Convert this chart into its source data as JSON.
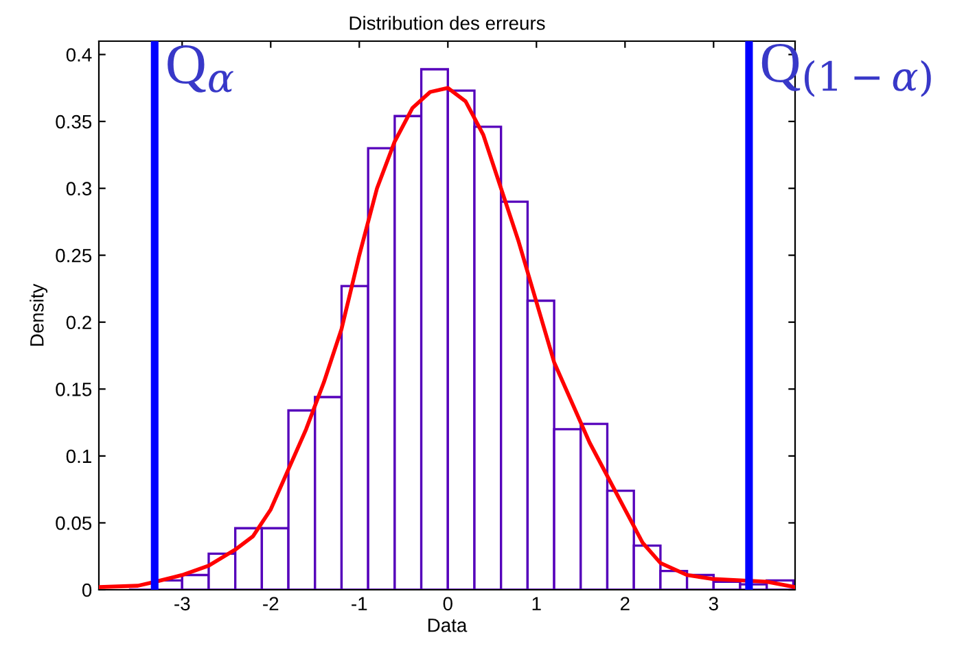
{
  "chart_data": {
    "type": "histogram",
    "title": "Distribution des erreurs",
    "xlabel": "Data",
    "ylabel": "Density",
    "series": [
      {
        "color": "#5500bb",
        "bins": [
          -3.9,
          -3.6,
          -3.3,
          -3.0,
          -2.7,
          -2.4,
          -2.1,
          -1.8,
          -1.5,
          -1.2,
          -0.9,
          -0.6,
          -0.3,
          0,
          0.3,
          0.6,
          0.9,
          1.2,
          1.5,
          1.8,
          2.1,
          2.4,
          2.7,
          3.0,
          3.3,
          3.6,
          3.9
        ],
        "values": [
          null,
          0,
          0.007,
          0.011,
          0.027,
          0.046,
          0.046,
          0.134,
          0.144,
          0.227,
          0.33,
          0.354,
          0.389,
          0.373,
          0.346,
          0.29,
          0.216,
          0.12,
          0.124,
          0.074,
          0.033,
          0.014,
          0.011,
          0.006,
          0.004,
          0.007
        ]
      },
      {
        "type": "line",
        "color": "#ff0000",
        "x": [
          -3.94,
          -3.5,
          -3.3,
          -3.0,
          -2.7,
          -2.4,
          -2.2,
          -2.0,
          -1.8,
          -1.6,
          -1.4,
          -1.2,
          -1.0,
          -0.8,
          -0.6,
          -0.4,
          -0.2,
          0,
          0.2,
          0.4,
          0.6,
          0.8,
          1.0,
          1.2,
          1.4,
          1.6,
          1.8,
          2.0,
          2.2,
          2.4,
          2.7,
          3.0,
          3.3,
          3.6,
          3.92
        ],
        "values": [
          0.002,
          0.003,
          0.006,
          0.011,
          0.018,
          0.03,
          0.04,
          0.06,
          0.09,
          0.12,
          0.155,
          0.195,
          0.25,
          0.3,
          0.335,
          0.36,
          0.372,
          0.375,
          0.365,
          0.34,
          0.3,
          0.26,
          0.215,
          0.17,
          0.14,
          0.11,
          0.085,
          0.06,
          0.035,
          0.02,
          0.011,
          0.008,
          0.007,
          0.006,
          0.002
        ]
      }
    ],
    "ref_lines": [
      {
        "axis": "x",
        "value": -3.31,
        "label": "Q$_{α}$",
        "color": "#0000ff"
      },
      {
        "axis": "x",
        "value": 3.4,
        "label": "Q$_{(1−α)}$",
        "color": "#0000ff"
      }
    ],
    "xlim": [
      -3.94,
      3.92
    ],
    "ylim": [
      0,
      0.41
    ],
    "xticks": [
      -3,
      -2,
      -1,
      0,
      1,
      2,
      3
    ],
    "yticks": [
      0,
      0.05,
      0.1,
      0.15,
      0.2,
      0.25,
      0.3,
      0.35,
      0.4
    ],
    "grid": false,
    "legend": false
  }
}
